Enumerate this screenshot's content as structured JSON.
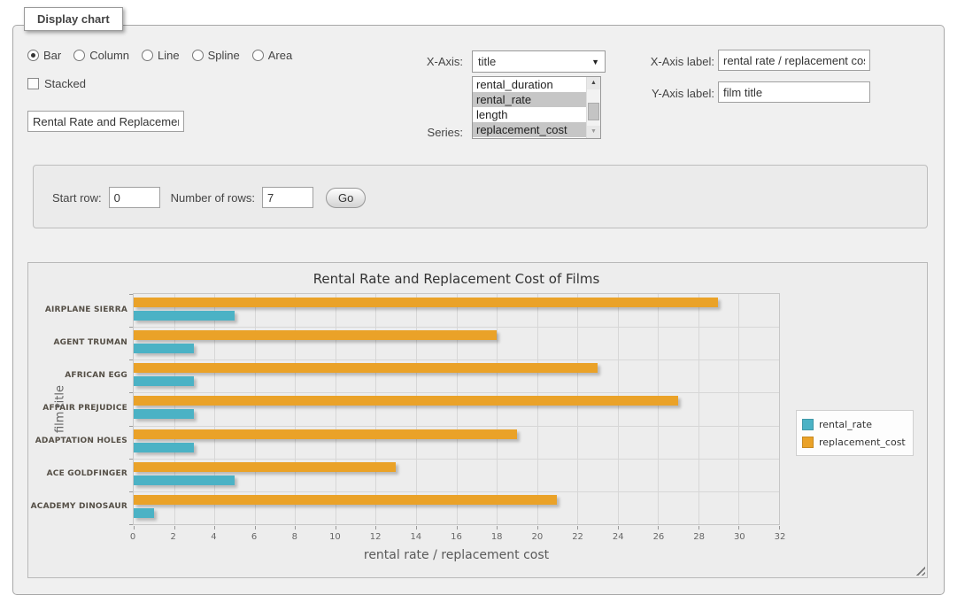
{
  "panel": {
    "legend": "Display chart"
  },
  "chart_type": {
    "options": [
      "Bar",
      "Column",
      "Line",
      "Spline",
      "Area"
    ],
    "selected": "Bar"
  },
  "stacked": {
    "label": "Stacked",
    "checked": false
  },
  "title_input": {
    "value": "Rental Rate and Replacemer"
  },
  "axis_controls": {
    "x_axis": {
      "label": "X-Axis:",
      "selected": "title"
    },
    "series": {
      "label": "Series:",
      "options": [
        {
          "label": "rental_duration",
          "selected": false
        },
        {
          "label": "rental_rate",
          "selected": true
        },
        {
          "label": "length",
          "selected": false
        },
        {
          "label": "replacement_cost",
          "selected": true
        }
      ]
    }
  },
  "label_controls": {
    "x_axis_label": {
      "label": "X-Axis label:",
      "value": "rental rate / replacement cost"
    },
    "y_axis_label": {
      "label": "Y-Axis label:",
      "value": "film title"
    }
  },
  "row_controls": {
    "start_row": {
      "label": "Start row:",
      "value": "0"
    },
    "num_rows": {
      "label": "Number of rows:",
      "value": "7"
    },
    "go_label": "Go"
  },
  "chart_data": {
    "type": "bar",
    "orientation": "horizontal",
    "title": "Rental Rate and Replacement Cost of Films",
    "categories": [
      "AIRPLANE SIERRA",
      "AGENT TRUMAN",
      "AFRICAN EGG",
      "AFFAIR PREJUDICE",
      "ADAPTATION HOLES",
      "ACE GOLDFINGER",
      "ACADEMY DINOSAUR"
    ],
    "series": [
      {
        "name": "rental_rate",
        "color": "#4bb2c5",
        "values": [
          4.99,
          2.99,
          2.99,
          2.99,
          2.99,
          4.99,
          0.99
        ]
      },
      {
        "name": "replacement_cost",
        "color": "#eaa228",
        "values": [
          28.99,
          17.99,
          22.99,
          26.99,
          18.99,
          12.99,
          20.99
        ]
      }
    ],
    "xlabel": "rental rate / replacement cost",
    "ylabel": "film title",
    "xlim": [
      0,
      32
    ],
    "xticks": [
      0,
      2,
      4,
      6,
      8,
      10,
      12,
      14,
      16,
      18,
      20,
      22,
      24,
      26,
      28,
      30,
      32
    ],
    "grid": true,
    "legend_position": "right",
    "bar_display_order_top_to_bottom": [
      "replacement_cost",
      "rental_rate"
    ]
  }
}
